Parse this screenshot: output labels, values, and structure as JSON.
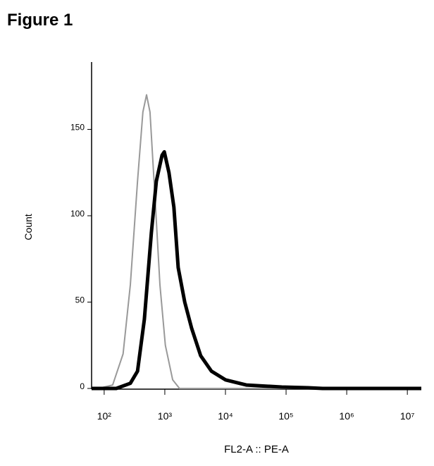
{
  "chart_data": {
    "type": "line",
    "title": "Figure 1",
    "xlabel": "FL2-A :: PE-A",
    "ylabel": "Count",
    "xscale": "log",
    "xlim": [
      62,
      17000000
    ],
    "xticks": [
      {
        "value": 100,
        "label": "10²"
      },
      {
        "value": 1000,
        "label": "10³"
      },
      {
        "value": 10000,
        "label": "10⁴"
      },
      {
        "value": 100000,
        "label": "10⁵"
      },
      {
        "value": 1000000,
        "label": "10⁶"
      },
      {
        "value": 10000000,
        "label": "10⁷"
      }
    ],
    "ylim": [
      0,
      189
    ],
    "yticks": [
      0,
      50,
      100,
      150
    ],
    "series": [
      {
        "color": "#999999",
        "width": 2,
        "x": [
          62,
          80,
          138,
          205,
          270,
          355,
          435,
          500,
          570,
          690,
          830,
          1020,
          1350,
          1750,
          17000000
        ],
        "values": [
          0,
          0,
          2,
          20,
          60,
          120,
          160,
          170,
          160,
          110,
          60,
          25,
          5,
          0,
          0
        ]
      },
      {
        "color": "#000000",
        "width": 5,
        "x": [
          62,
          158,
          270,
          355,
          460,
          600,
          725,
          900,
          980,
          1170,
          1410,
          1660,
          2130,
          2760,
          3900,
          5870,
          10000,
          22000,
          85000,
          230000,
          400000,
          17000000
        ],
        "values": [
          0,
          0,
          3,
          10,
          40,
          90,
          120,
          135,
          137,
          125,
          105,
          70,
          50,
          35,
          19,
          10,
          5,
          2,
          0.8,
          0.4,
          0,
          0
        ]
      }
    ]
  }
}
